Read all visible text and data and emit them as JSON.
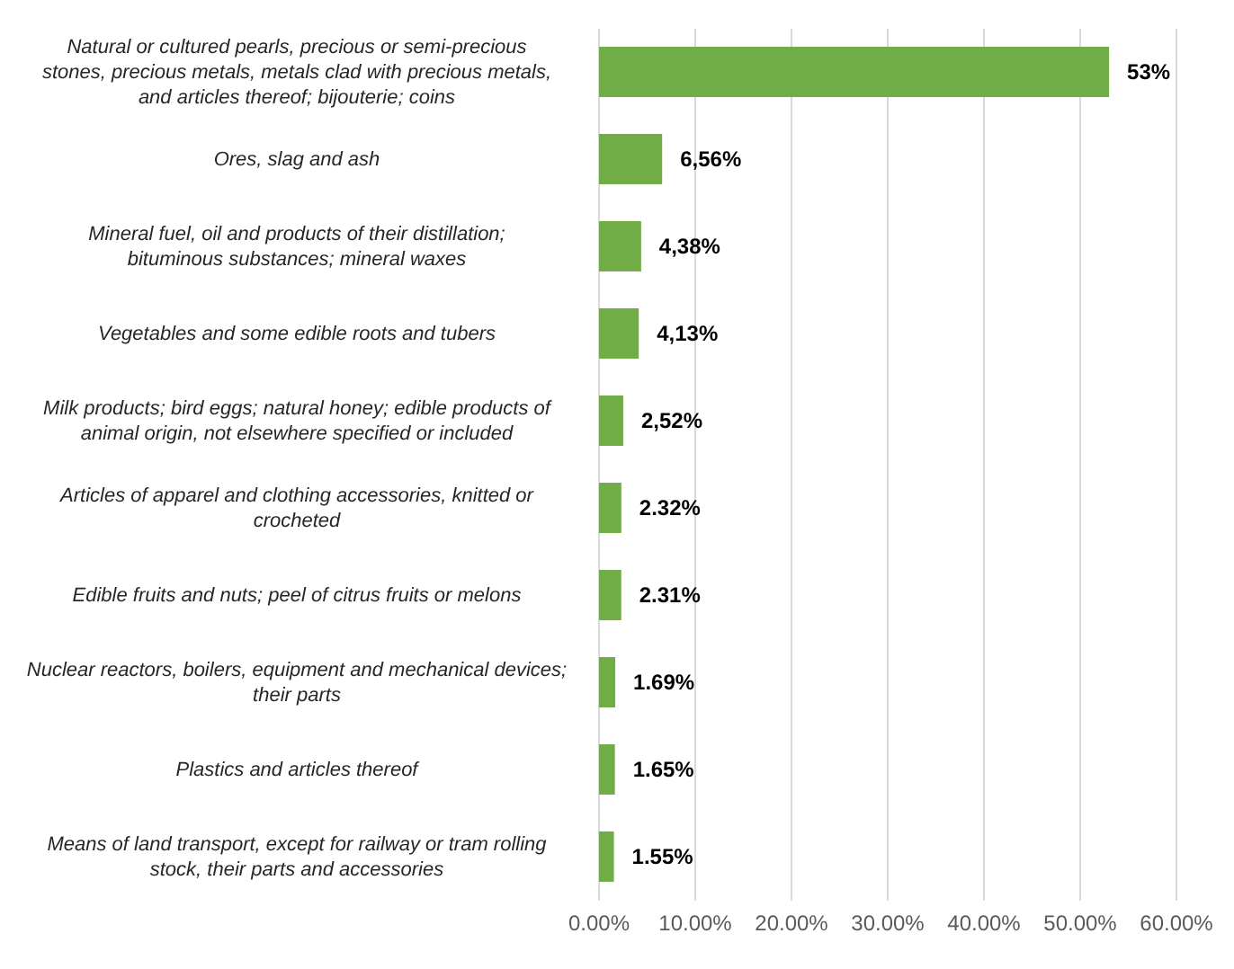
{
  "chart_data": {
    "type": "bar",
    "orientation": "horizontal",
    "categories": [
      "Natural or cultured pearls, precious or semi-precious stones, precious metals, metals clad with precious metals, and articles thereof; bijouterie; coins",
      "Ores, slag and ash",
      "Mineral fuel, oil and products of their distillation; bituminous substances; mineral waxes",
      "Vegetables and some edible roots and tubers",
      "Milk products; bird eggs; natural honey; edible products of animal origin, not elsewhere specified or included",
      "Articles of apparel and clothing accessories, knitted or crocheted",
      "Edible fruits and nuts; peel of citrus fruits or melons",
      "Nuclear reactors, boilers, equipment and mechanical devices; their parts",
      "Plastics and articles thereof",
      "Means of land transport, except for railway or tram rolling stock, their parts and accessories"
    ],
    "values": [
      53,
      6.56,
      4.38,
      4.13,
      2.52,
      2.32,
      2.31,
      1.69,
      1.65,
      1.55
    ],
    "value_labels": [
      "53%",
      "6,56%",
      "4,38%",
      "4,13%",
      "2,52%",
      "2.32%",
      "2.31%",
      "1.69%",
      "1.65%",
      "1.55%"
    ],
    "color": "#70ad47",
    "xlim": [
      0,
      60
    ],
    "xticks": [
      {
        "value": 0,
        "label": "0.00%"
      },
      {
        "value": 10,
        "label": "10.00%"
      },
      {
        "value": 20,
        "label": "20.00%"
      },
      {
        "value": 30,
        "label": "30.00%"
      },
      {
        "value": 40,
        "label": "40.00%"
      },
      {
        "value": 50,
        "label": "50.00%"
      },
      {
        "value": 60,
        "label": "60.00%"
      }
    ],
    "grid": "x"
  }
}
